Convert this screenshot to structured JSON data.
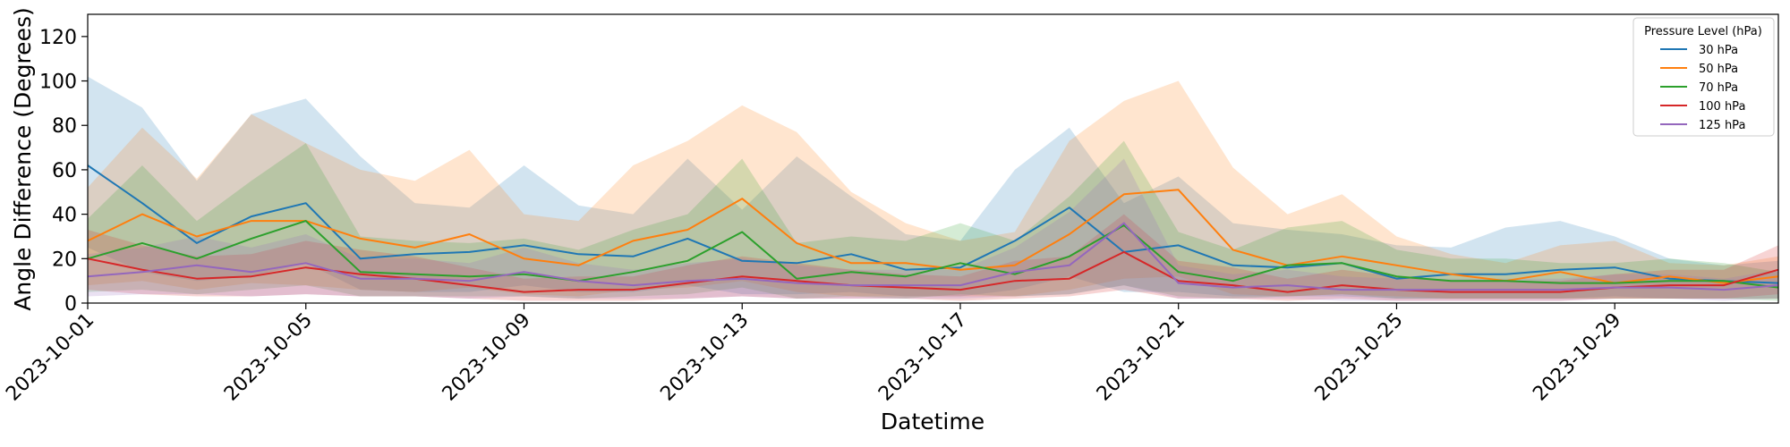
{
  "chart_data": {
    "type": "line",
    "title": "",
    "xlabel": "Datetime",
    "ylabel": "Angle Difference (Degrees)",
    "xlim": [
      "2023-10-01",
      "2023-11-01"
    ],
    "ylim": [
      0,
      130
    ],
    "y_ticks": [
      0,
      20,
      40,
      60,
      80,
      100,
      120
    ],
    "x_ticks": [
      "2023-10-01",
      "2023-10-05",
      "2023-10-09",
      "2023-10-13",
      "2023-10-17",
      "2023-10-21",
      "2023-10-25",
      "2023-10-29"
    ],
    "grid": false,
    "legend": {
      "title": "Pressure Level (hPa)",
      "placement": "top-right"
    },
    "x": [
      "2023-10-01",
      "2023-10-02",
      "2023-10-03",
      "2023-10-04",
      "2023-10-05",
      "2023-10-06",
      "2023-10-07",
      "2023-10-08",
      "2023-10-09",
      "2023-10-10",
      "2023-10-11",
      "2023-10-12",
      "2023-10-13",
      "2023-10-14",
      "2023-10-15",
      "2023-10-16",
      "2023-10-17",
      "2023-10-18",
      "2023-10-19",
      "2023-10-20",
      "2023-10-21",
      "2023-10-22",
      "2023-10-23",
      "2023-10-24",
      "2023-10-25",
      "2023-10-26",
      "2023-10-27",
      "2023-10-28",
      "2023-10-29",
      "2023-10-30",
      "2023-10-31",
      "2023-11-01"
    ],
    "series": [
      {
        "name": "30 hPa",
        "color": "#1f77b4",
        "values": [
          62,
          45,
          27,
          39,
          45,
          20,
          22,
          23,
          26,
          22,
          21,
          29,
          19,
          18,
          22,
          15,
          16,
          28,
          43,
          23,
          26,
          17,
          16,
          18,
          11,
          13,
          13,
          15,
          16,
          11,
          10,
          9
        ],
        "band_upper": [
          102,
          88,
          55,
          85,
          92,
          66,
          45,
          43,
          62,
          44,
          40,
          65,
          42,
          66,
          48,
          31,
          28,
          60,
          79,
          45,
          57,
          36,
          33,
          31,
          26,
          25,
          34,
          37,
          30,
          20,
          17,
          19
        ],
        "band_lower": [
          25,
          14,
          10,
          12,
          18,
          6,
          5,
          5,
          8,
          5,
          5,
          8,
          4,
          4,
          5,
          3,
          3,
          6,
          12,
          5,
          5,
          3,
          3,
          3,
          2,
          2,
          2,
          2,
          3,
          2,
          2,
          2
        ]
      },
      {
        "name": "50 hPa",
        "color": "#ff7f0e",
        "values": [
          28,
          40,
          30,
          37,
          37,
          29,
          25,
          31,
          20,
          17,
          28,
          33,
          47,
          27,
          18,
          18,
          15,
          17,
          31,
          49,
          51,
          24,
          17,
          21,
          17,
          13,
          10,
          14,
          9,
          12,
          9,
          12
        ],
        "band_upper": [
          52,
          79,
          56,
          85,
          72,
          60,
          55,
          69,
          40,
          37,
          62,
          73,
          89,
          77,
          50,
          36,
          28,
          32,
          73,
          91,
          100,
          61,
          40,
          49,
          30,
          22,
          18,
          26,
          28,
          18,
          17,
          21
        ],
        "band_lower": [
          8,
          10,
          6,
          9,
          8,
          6,
          5,
          7,
          4,
          3,
          6,
          7,
          10,
          5,
          3,
          3,
          3,
          3,
          6,
          11,
          12,
          4,
          3,
          4,
          3,
          2,
          2,
          2,
          2,
          2,
          2,
          2
        ]
      },
      {
        "name": "70 hPa",
        "color": "#2ca02c",
        "values": [
          20,
          27,
          20,
          29,
          37,
          14,
          13,
          12,
          13,
          10,
          14,
          19,
          32,
          11,
          14,
          12,
          18,
          13,
          21,
          35,
          14,
          10,
          17,
          18,
          12,
          10,
          10,
          9,
          9,
          10,
          10,
          7
        ],
        "band_upper": [
          38,
          62,
          37,
          55,
          72,
          30,
          28,
          27,
          29,
          24,
          33,
          40,
          65,
          27,
          30,
          28,
          36,
          28,
          48,
          73,
          32,
          24,
          34,
          37,
          24,
          20,
          20,
          18,
          18,
          20,
          18,
          14
        ],
        "band_lower": [
          5,
          6,
          4,
          6,
          8,
          3,
          3,
          3,
          3,
          2,
          3,
          4,
          7,
          2,
          3,
          2,
          4,
          3,
          4,
          8,
          3,
          2,
          3,
          4,
          2,
          2,
          2,
          2,
          2,
          2,
          2,
          1
        ]
      },
      {
        "name": "100 hPa",
        "color": "#d62728",
        "values": [
          20,
          15,
          11,
          12,
          16,
          13,
          11,
          8,
          5,
          6,
          6,
          9,
          12,
          10,
          8,
          7,
          6,
          10,
          11,
          23,
          10,
          8,
          5,
          8,
          6,
          5,
          5,
          5,
          7,
          8,
          8,
          15
        ],
        "band_upper": [
          33,
          26,
          21,
          22,
          28,
          24,
          21,
          16,
          11,
          12,
          12,
          17,
          21,
          18,
          15,
          13,
          12,
          19,
          21,
          40,
          19,
          16,
          11,
          15,
          12,
          10,
          10,
          10,
          13,
          15,
          15,
          26
        ],
        "band_lower": [
          6,
          4,
          3,
          3,
          4,
          3,
          3,
          2,
          1,
          1,
          1,
          2,
          3,
          2,
          2,
          2,
          1,
          2,
          3,
          6,
          2,
          2,
          1,
          2,
          1,
          1,
          1,
          1,
          2,
          2,
          2,
          4
        ]
      },
      {
        "name": "125 hPa",
        "color": "#9467bd",
        "values": [
          12,
          14,
          17,
          14,
          18,
          11,
          11,
          10,
          14,
          10,
          8,
          10,
          11,
          9,
          8,
          8,
          8,
          14,
          17,
          36,
          9,
          7,
          8,
          6,
          6,
          6,
          6,
          6,
          7,
          7,
          6,
          8
        ],
        "band_upper": [
          22,
          25,
          30,
          25,
          31,
          20,
          20,
          18,
          25,
          18,
          15,
          18,
          20,
          17,
          15,
          15,
          15,
          25,
          41,
          65,
          17,
          13,
          15,
          12,
          11,
          11,
          11,
          11,
          13,
          13,
          11,
          15
        ],
        "band_lower": [
          3,
          4,
          4,
          3,
          4,
          3,
          3,
          2,
          3,
          2,
          2,
          2,
          3,
          2,
          2,
          2,
          2,
          3,
          4,
          8,
          2,
          2,
          2,
          1,
          1,
          1,
          1,
          1,
          2,
          2,
          1,
          2
        ]
      }
    ]
  }
}
